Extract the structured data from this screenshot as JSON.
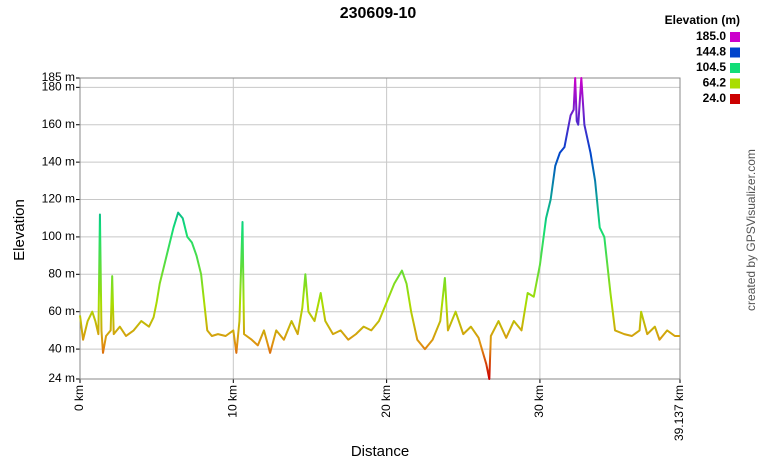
{
  "chart_data": {
    "type": "line",
    "title": "230609-10",
    "x_label": "Distance",
    "y_label": "Elevation",
    "credit": "created by GPSVisualizer.com",
    "legend_title": "Elevation (m)",
    "legend": [
      {
        "value": 185,
        "label": "185.0",
        "color": "#cc00cc"
      },
      {
        "value": 144.8,
        "label": "144.8",
        "color": "#0044cc"
      },
      {
        "value": 104.5,
        "label": "104.5",
        "color": "#11dd77"
      },
      {
        "value": 64.2,
        "label": "64.2",
        "color": "#aadd00"
      },
      {
        "value": 24,
        "label": "24.0",
        "color": "#cc0000"
      }
    ],
    "xlim": [
      0,
      39.137
    ],
    "xticks": [
      {
        "value": 0,
        "label": "0 km"
      },
      {
        "value": 10,
        "label": "10 km"
      },
      {
        "value": 20,
        "label": "20 km"
      },
      {
        "value": 30,
        "label": "30 km"
      },
      {
        "value": 39.137,
        "label": "39.137 km"
      }
    ],
    "ylim": [
      24,
      185
    ],
    "yticks": [
      {
        "value": 24,
        "label": "24 m"
      },
      {
        "value": 40,
        "label": "40 m"
      },
      {
        "value": 60,
        "label": "60 m"
      },
      {
        "value": 80,
        "label": "80 m"
      },
      {
        "value": 100,
        "label": "100 m"
      },
      {
        "value": 120,
        "label": "120 m"
      },
      {
        "value": 140,
        "label": "140 m"
      },
      {
        "value": 160,
        "label": "160 m"
      },
      {
        "value": 180,
        "label": "180 m"
      },
      {
        "value": 185,
        "label": "185 m"
      }
    ],
    "grid": true,
    "series": [
      {
        "name": "Elevation",
        "x": [
          0,
          0.2,
          0.5,
          0.8,
          1.0,
          1.2,
          1.3,
          1.4,
          1.5,
          1.7,
          2.0,
          2.1,
          2.2,
          2.6,
          3.0,
          3.5,
          4.0,
          4.5,
          4.8,
          5.0,
          5.2,
          5.5,
          5.8,
          6.1,
          6.4,
          6.7,
          7.0,
          7.3,
          7.6,
          7.9,
          8.1,
          8.3,
          8.6,
          9.0,
          9.5,
          10.0,
          10.2,
          10.4,
          10.6,
          10.7,
          11.2,
          11.6,
          12.0,
          12.4,
          12.8,
          13.3,
          13.8,
          14.2,
          14.5,
          14.7,
          14.9,
          15.3,
          15.7,
          16.0,
          16.5,
          17.0,
          17.5,
          18.0,
          18.5,
          19.0,
          19.5,
          20.0,
          20.5,
          21.0,
          21.3,
          21.6,
          22.0,
          22.5,
          23.0,
          23.5,
          23.8,
          24.0,
          24.5,
          25.0,
          25.5,
          26.0,
          26.5,
          26.7,
          26.8,
          27.3,
          27.8,
          28.3,
          28.8,
          29.2,
          29.6,
          30.0,
          30.4,
          30.7,
          31.0,
          31.3,
          31.6,
          32.0,
          32.2,
          32.3,
          32.4,
          32.5,
          32.7,
          32.9,
          33.3,
          33.6,
          33.9,
          34.2,
          34.6,
          34.9,
          35.5,
          36.0,
          36.5,
          36.6,
          37.0,
          37.5,
          37.8,
          38.3,
          38.8,
          39.137
        ],
        "values": [
          58,
          45,
          55,
          60,
          55,
          48,
          112,
          50,
          38,
          47,
          50,
          79,
          48,
          52,
          47,
          50,
          55,
          52,
          57,
          65,
          75,
          85,
          95,
          105,
          113,
          110,
          100,
          97,
          90,
          80,
          65,
          50,
          47,
          48,
          47,
          50,
          38,
          55,
          108,
          48,
          45,
          42,
          50,
          38,
          50,
          45,
          55,
          48,
          62,
          80,
          60,
          55,
          70,
          55,
          48,
          50,
          45,
          48,
          52,
          50,
          55,
          65,
          75,
          82,
          75,
          60,
          45,
          40,
          45,
          55,
          78,
          50,
          60,
          48,
          52,
          46,
          32,
          24,
          47,
          55,
          46,
          55,
          50,
          70,
          68,
          85,
          110,
          120,
          138,
          145,
          148,
          165,
          168,
          185,
          162,
          160,
          185,
          160,
          145,
          130,
          105,
          100,
          70,
          50,
          48,
          47,
          50,
          60,
          48,
          52,
          45,
          50,
          47,
          47
        ]
      }
    ]
  }
}
